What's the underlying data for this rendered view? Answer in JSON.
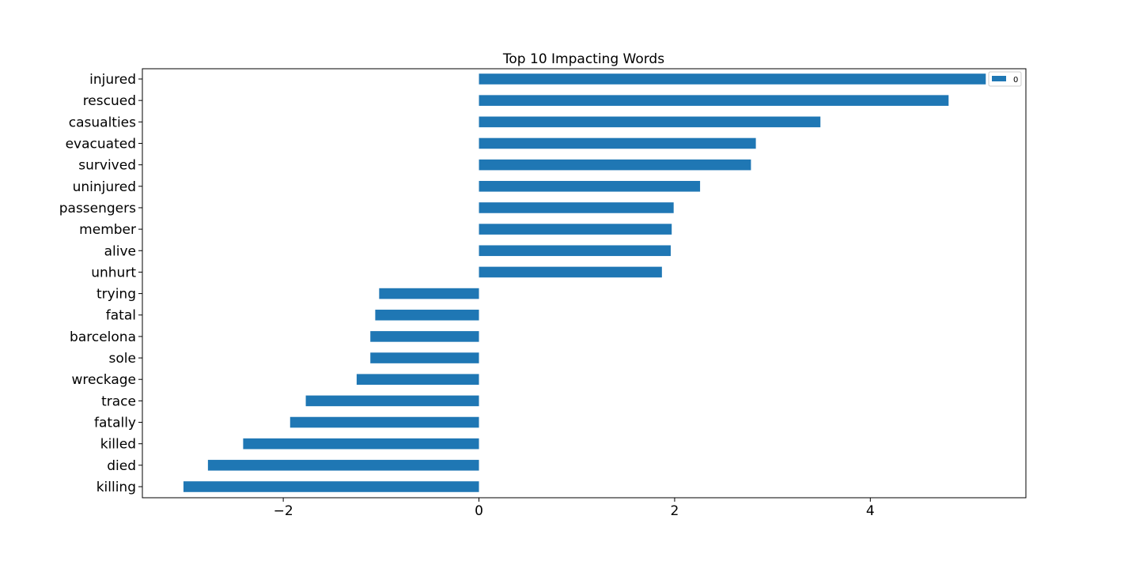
{
  "chart_data": {
    "type": "bar",
    "orientation": "horizontal",
    "title": "Top 10 Impacting Words",
    "xlabel": "",
    "ylabel": "",
    "categories": [
      "injured",
      "rescued",
      "casualties",
      "evacuated",
      "survived",
      "uninjured",
      "passengers",
      "member",
      "alive",
      "unhurt",
      "trying",
      "fatal",
      "barcelona",
      "sole",
      "wreckage",
      "trace",
      "fatally",
      "killed",
      "died",
      "killing"
    ],
    "series": [
      {
        "name": "0",
        "color": "#1f77b4",
        "values": [
          5.18,
          4.8,
          3.49,
          2.83,
          2.78,
          2.26,
          1.99,
          1.97,
          1.96,
          1.87,
          -1.02,
          -1.06,
          -1.11,
          -1.11,
          -1.25,
          -1.77,
          -1.93,
          -2.41,
          -2.77,
          -3.02
        ]
      }
    ],
    "xlim": [
      -3.44,
      5.59
    ],
    "xticks": [
      -2,
      0,
      2,
      4
    ],
    "xtick_labels": [
      "−2",
      "0",
      "2",
      "4"
    ],
    "grid": false,
    "legend_position": "upper right"
  }
}
